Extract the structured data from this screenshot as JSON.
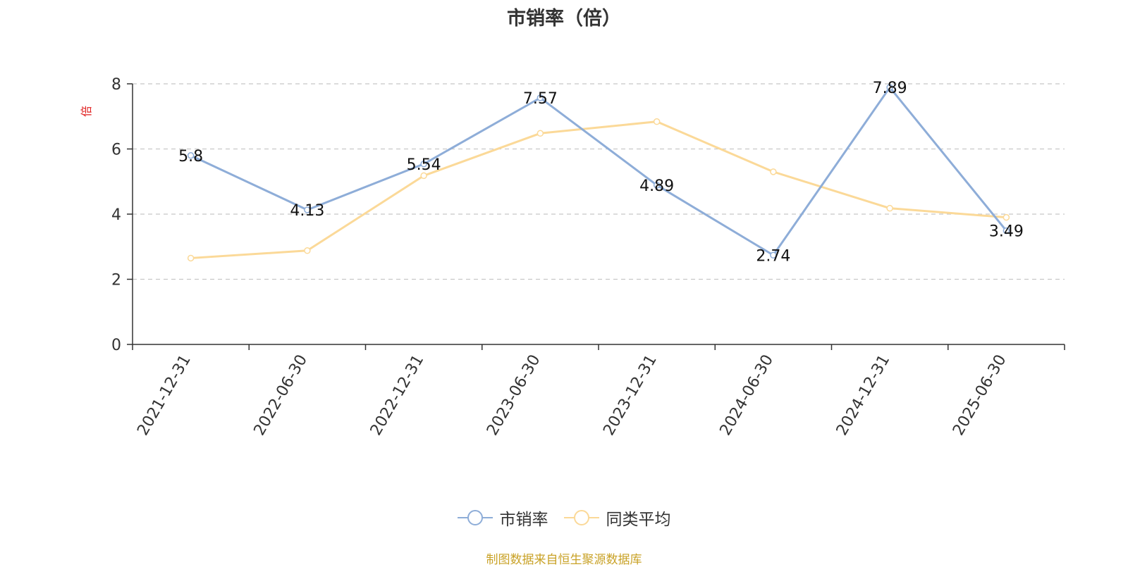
{
  "chart_data": {
    "type": "line",
    "title": "市销率（倍）",
    "ylabel": "倍",
    "ylim": [
      0,
      8
    ],
    "yticks": [
      0,
      2,
      4,
      6,
      8
    ],
    "categories": [
      "2021-12-31",
      "2022-06-30",
      "2022-12-31",
      "2023-06-30",
      "2023-12-31",
      "2024-06-30",
      "2024-12-31",
      "2025-06-30"
    ],
    "grid": true,
    "legend_position": "bottom",
    "series": [
      {
        "name": "市销率",
        "color": "#8eadd8",
        "values": [
          5.8,
          4.13,
          5.54,
          7.57,
          4.89,
          2.74,
          7.89,
          3.49
        ],
        "labels": [
          "5.8",
          "4.13",
          "5.54",
          "7.57",
          "4.89",
          "2.74",
          "7.89",
          "3.49"
        ]
      },
      {
        "name": "同类平均",
        "color": "#fbd998",
        "values": [
          2.65,
          2.88,
          5.18,
          6.48,
          6.84,
          5.3,
          4.18,
          3.9
        ]
      }
    ]
  },
  "source_note": "制图数据来自恒生聚源数据库"
}
